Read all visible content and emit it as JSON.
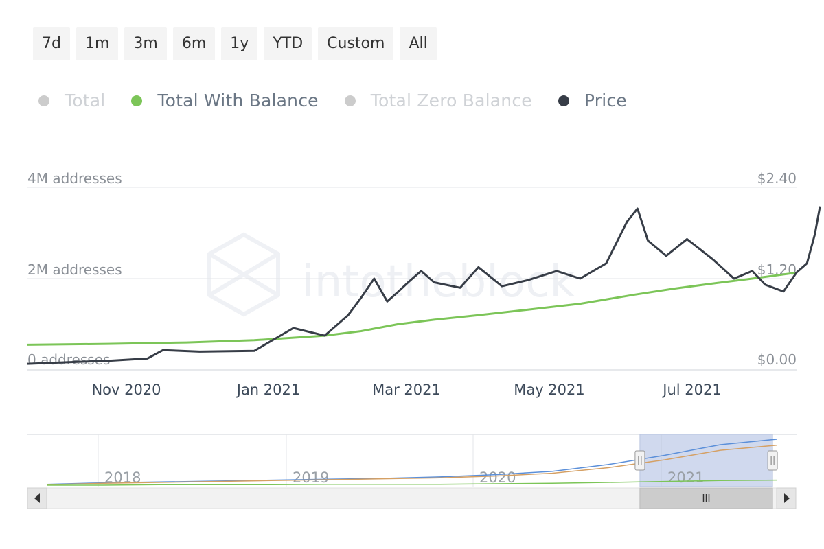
{
  "range_buttons": [
    "7d",
    "1m",
    "3m",
    "6m",
    "1y",
    "YTD",
    "Custom",
    "All"
  ],
  "legend": [
    {
      "label": "Total",
      "active": false,
      "color": "#cccccc"
    },
    {
      "label": "Total With Balance",
      "active": true,
      "color": "#7cc558"
    },
    {
      "label": "Total Zero Balance",
      "active": false,
      "color": "#cccccc"
    },
    {
      "label": "Price",
      "active": true,
      "color": "#373d47"
    }
  ],
  "watermark": "intotheblock",
  "chart_data": {
    "type": "line",
    "x_range": [
      "2020-10-10",
      "2021-08-01"
    ],
    "x_ticks": [
      "Nov 2020",
      "Jan 2021",
      "Mar 2021",
      "May 2021",
      "Jul 2021"
    ],
    "y_left": {
      "ticks": [
        "0 addresses",
        "2M addresses",
        "4M addresses"
      ],
      "range": [
        0,
        4000000
      ]
    },
    "y_right": {
      "ticks": [
        "$0.00",
        "$1.20",
        "$2.40"
      ],
      "range": [
        0,
        2.4
      ]
    },
    "series": [
      {
        "name": "Total With Balance",
        "axis": "left",
        "color": "#7cc558",
        "points": [
          [
            "2020-10-10",
            550000
          ],
          [
            "2020-11-10",
            570000
          ],
          [
            "2020-12-10",
            600000
          ],
          [
            "2021-01-05",
            650000
          ],
          [
            "2021-02-01",
            750000
          ],
          [
            "2021-02-15",
            850000
          ],
          [
            "2021-03-01",
            1000000
          ],
          [
            "2021-03-15",
            1100000
          ],
          [
            "2021-04-01",
            1200000
          ],
          [
            "2021-04-20",
            1320000
          ],
          [
            "2021-05-10",
            1450000
          ],
          [
            "2021-05-31",
            1650000
          ],
          [
            "2021-06-15",
            1780000
          ],
          [
            "2021-07-01",
            1900000
          ],
          [
            "2021-07-15",
            2000000
          ],
          [
            "2021-08-01",
            2130000
          ]
        ]
      },
      {
        "name": "Price",
        "axis": "right",
        "color": "#373d47",
        "points": [
          [
            "2020-10-10",
            0.08
          ],
          [
            "2020-10-25",
            0.1
          ],
          [
            "2020-11-10",
            0.12
          ],
          [
            "2020-11-25",
            0.15
          ],
          [
            "2020-12-01",
            0.26
          ],
          [
            "2020-12-15",
            0.24
          ],
          [
            "2021-01-05",
            0.25
          ],
          [
            "2021-01-20",
            0.55
          ],
          [
            "2021-02-01",
            0.45
          ],
          [
            "2021-02-10",
            0.72
          ],
          [
            "2021-02-15",
            0.95
          ],
          [
            "2021-02-20",
            1.2
          ],
          [
            "2021-02-25",
            0.9
          ],
          [
            "2021-03-01",
            1.02
          ],
          [
            "2021-03-05",
            1.15
          ],
          [
            "2021-03-10",
            1.3
          ],
          [
            "2021-03-15",
            1.15
          ],
          [
            "2021-03-25",
            1.08
          ],
          [
            "2021-04-01",
            1.35
          ],
          [
            "2021-04-10",
            1.1
          ],
          [
            "2021-04-20",
            1.18
          ],
          [
            "2021-05-01",
            1.3
          ],
          [
            "2021-05-10",
            1.2
          ],
          [
            "2021-05-20",
            1.4
          ],
          [
            "2021-05-28",
            1.95
          ],
          [
            "2021-06-01",
            2.12
          ],
          [
            "2021-06-05",
            1.7
          ],
          [
            "2021-06-12",
            1.5
          ],
          [
            "2021-06-20",
            1.72
          ],
          [
            "2021-06-30",
            1.45
          ],
          [
            "2021-07-08",
            1.2
          ],
          [
            "2021-07-15",
            1.3
          ],
          [
            "2021-07-20",
            1.12
          ],
          [
            "2021-07-27",
            1.03
          ],
          [
            "2021-08-01",
            1.28
          ],
          [
            "2021-08-05",
            1.4
          ],
          [
            "2021-08-08",
            1.78
          ],
          [
            "2021-08-10",
            2.15
          ]
        ]
      }
    ],
    "grid": true,
    "navigator": {
      "year_labels": [
        "2018",
        "2019",
        "2020",
        "2021"
      ],
      "selected_range": [
        "2020-10-10",
        "2021-08-01"
      ],
      "series": [
        {
          "color": "#5b8fd9",
          "values": [
            0.02,
            0.05,
            0.07,
            0.09,
            0.11,
            0.13,
            0.15,
            0.18,
            0.23,
            0.3,
            0.45,
            0.65,
            0.88,
            1.0
          ]
        },
        {
          "color": "#d5a064",
          "values": [
            0.01,
            0.04,
            0.06,
            0.08,
            0.1,
            0.12,
            0.14,
            0.16,
            0.2,
            0.26,
            0.38,
            0.55,
            0.76,
            0.87
          ]
        },
        {
          "color": "#7cc558",
          "values": [
            0.0,
            0.0,
            0.01,
            0.01,
            0.01,
            0.02,
            0.02,
            0.02,
            0.03,
            0.04,
            0.06,
            0.08,
            0.1,
            0.11
          ]
        }
      ]
    }
  }
}
